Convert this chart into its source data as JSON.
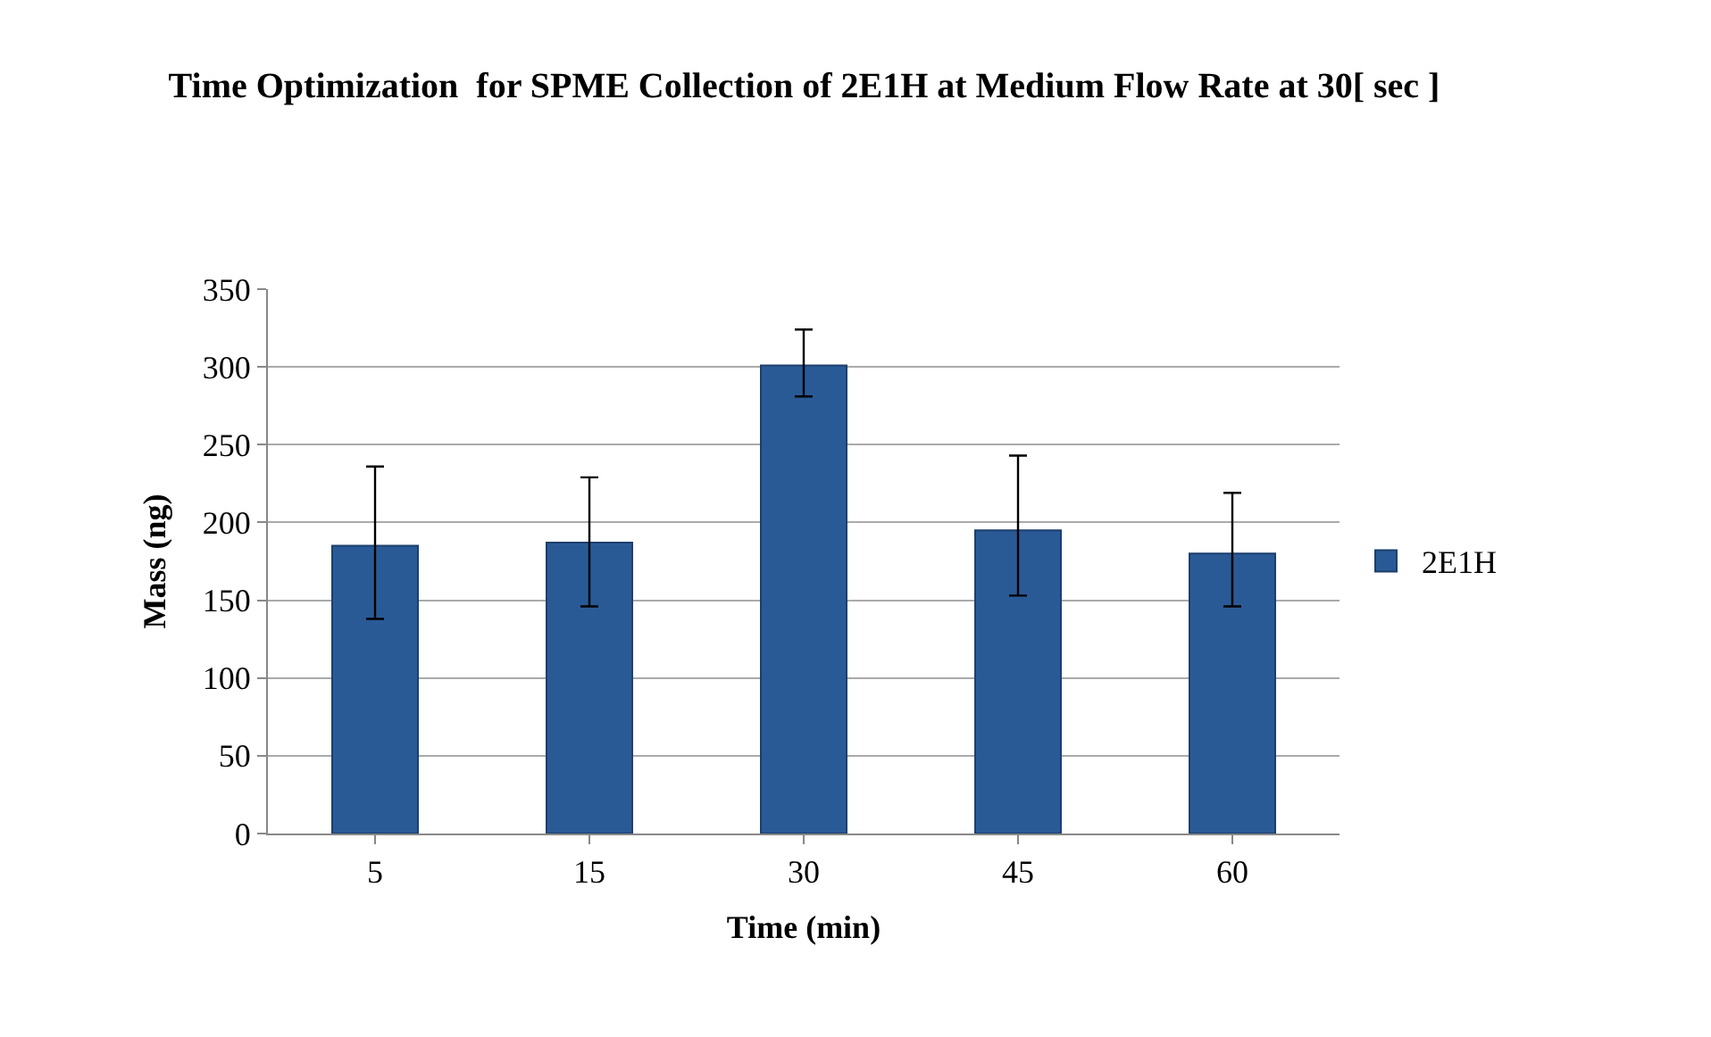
{
  "chart_data": {
    "type": "bar",
    "title": "Time Optimization  for SPME Collection of 2E1H at Medium Flow Rate at 30[ sec ]",
    "xlabel": "Time (min)",
    "ylabel": "Mass (ng)",
    "categories": [
      "5",
      "15",
      "30",
      "45",
      "60"
    ],
    "series": [
      {
        "name": "2E1H",
        "color": "#2a5a96",
        "values": [
          185,
          187,
          301,
          195,
          180
        ],
        "errors": [
          [
            138,
            236
          ],
          [
            146,
            229
          ],
          [
            281,
            324
          ],
          [
            153,
            243
          ],
          [
            146,
            219
          ]
        ]
      }
    ],
    "ylim": [
      0,
      350
    ],
    "yticks": [
      0,
      50,
      100,
      150,
      200,
      250,
      300,
      350
    ],
    "grid": "y",
    "legend": "right"
  }
}
